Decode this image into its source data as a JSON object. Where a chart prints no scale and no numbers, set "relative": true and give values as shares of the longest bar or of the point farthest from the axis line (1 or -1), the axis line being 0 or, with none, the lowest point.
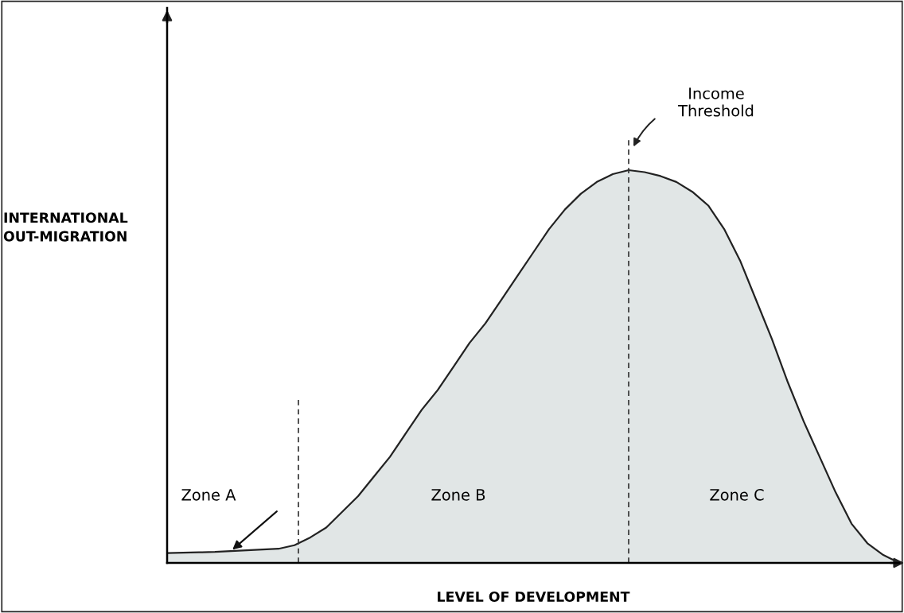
{
  "chart_data": {
    "type": "area",
    "relative": true,
    "xlabel": "LEVEL OF DEVELOPMENT",
    "ylabel": "INTERNATIONAL\nOUT-MIGRATION",
    "categories": [
      null,
      null,
      null,
      null,
      null,
      null,
      null,
      null,
      null,
      null,
      null,
      null,
      null,
      null,
      null,
      null,
      null,
      null,
      null,
      null,
      null,
      null,
      null,
      null,
      null,
      null,
      null,
      null,
      null,
      null,
      null,
      null,
      null,
      null,
      null,
      null,
      null,
      null,
      null,
      null,
      null,
      null,
      null,
      null,
      null,
      null,
      null
    ],
    "series": [
      {
        "color": "#e1e6e6",
        "values": [
          0.025,
          0.026,
          0.027,
          0.028,
          0.03,
          0.032,
          0.034,
          0.036,
          0.045,
          0.065,
          0.09,
          0.13,
          0.17,
          0.22,
          0.27,
          0.33,
          0.39,
          0.44,
          0.5,
          0.56,
          0.61,
          0.67,
          0.73,
          0.79,
          0.85,
          0.9,
          0.94,
          0.97,
          0.99,
          1.0,
          0.995,
          0.985,
          0.97,
          0.945,
          0.91,
          0.85,
          0.77,
          0.67,
          0.57,
          0.46,
          0.36,
          0.27,
          0.18,
          0.1,
          0.05,
          0.02,
          0
        ]
      }
    ],
    "annotations": [
      "Zone A",
      "Zone B",
      "Zone C",
      "Income\nThreshold"
    ]
  }
}
